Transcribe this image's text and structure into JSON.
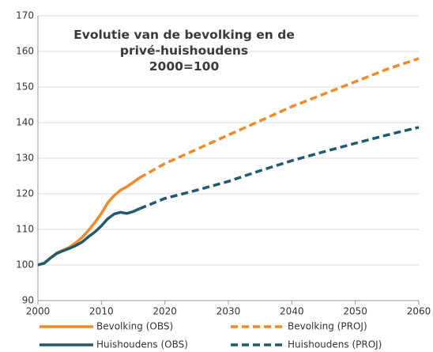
{
  "chart_data": {
    "type": "line",
    "title": "Evolutie van de bevolking en de privé-huishoudens",
    "subtitle": "2000=100",
    "xlim": [
      2000,
      2060
    ],
    "xticks": [
      2000,
      2010,
      2020,
      2030,
      2040,
      2050,
      2060
    ],
    "ylim": [
      90,
      170
    ],
    "yticks": [
      90,
      100,
      110,
      120,
      130,
      140,
      150,
      160,
      170
    ],
    "grid": true,
    "legend": "bottom",
    "series": [
      {
        "name": "Bevolking (OBS)",
        "color": "#f0892a",
        "line_style": "solid",
        "x": [
          2000,
          2001,
          2002,
          2003,
          2004,
          2005,
          2006,
          2007,
          2008,
          2009,
          2010,
          2011,
          2012,
          2013,
          2014,
          2015,
          2016
        ],
        "values": [
          100,
          100.6,
          102,
          103.4,
          104.2,
          105,
          106.3,
          107.8,
          109.8,
          112,
          114.5,
          117.5,
          119.5,
          121,
          122,
          123.2,
          124.5
        ]
      },
      {
        "name": "Bevolking (PROJ)",
        "color": "#f0892a",
        "line_style": "dashed",
        "x": [
          2016,
          2020,
          2025,
          2030,
          2035,
          2040,
          2045,
          2050,
          2055,
          2060
        ],
        "values": [
          124.5,
          128.5,
          132.5,
          136.5,
          140.5,
          144.5,
          148,
          151.5,
          155,
          158
        ]
      },
      {
        "name": "Huishoudens (OBS)",
        "color": "#21596f",
        "line_style": "solid",
        "x": [
          2000,
          2001,
          2002,
          2003,
          2004,
          2005,
          2006,
          2007,
          2008,
          2009,
          2010,
          2011,
          2012,
          2013,
          2014,
          2015,
          2016
        ],
        "values": [
          100,
          100.5,
          102,
          103.3,
          104,
          104.7,
          105.5,
          106.5,
          108,
          109.3,
          111,
          113,
          114.3,
          114.8,
          114.5,
          115,
          115.8
        ]
      },
      {
        "name": "Huishoudens (PROJ)",
        "color": "#21596f",
        "line_style": "dashed",
        "x": [
          2016,
          2020,
          2025,
          2030,
          2035,
          2040,
          2045,
          2050,
          2055,
          2060
        ],
        "values": [
          115.8,
          118.7,
          121,
          123.5,
          126.5,
          129.3,
          131.8,
          134.2,
          136.5,
          138.7
        ]
      }
    ]
  }
}
